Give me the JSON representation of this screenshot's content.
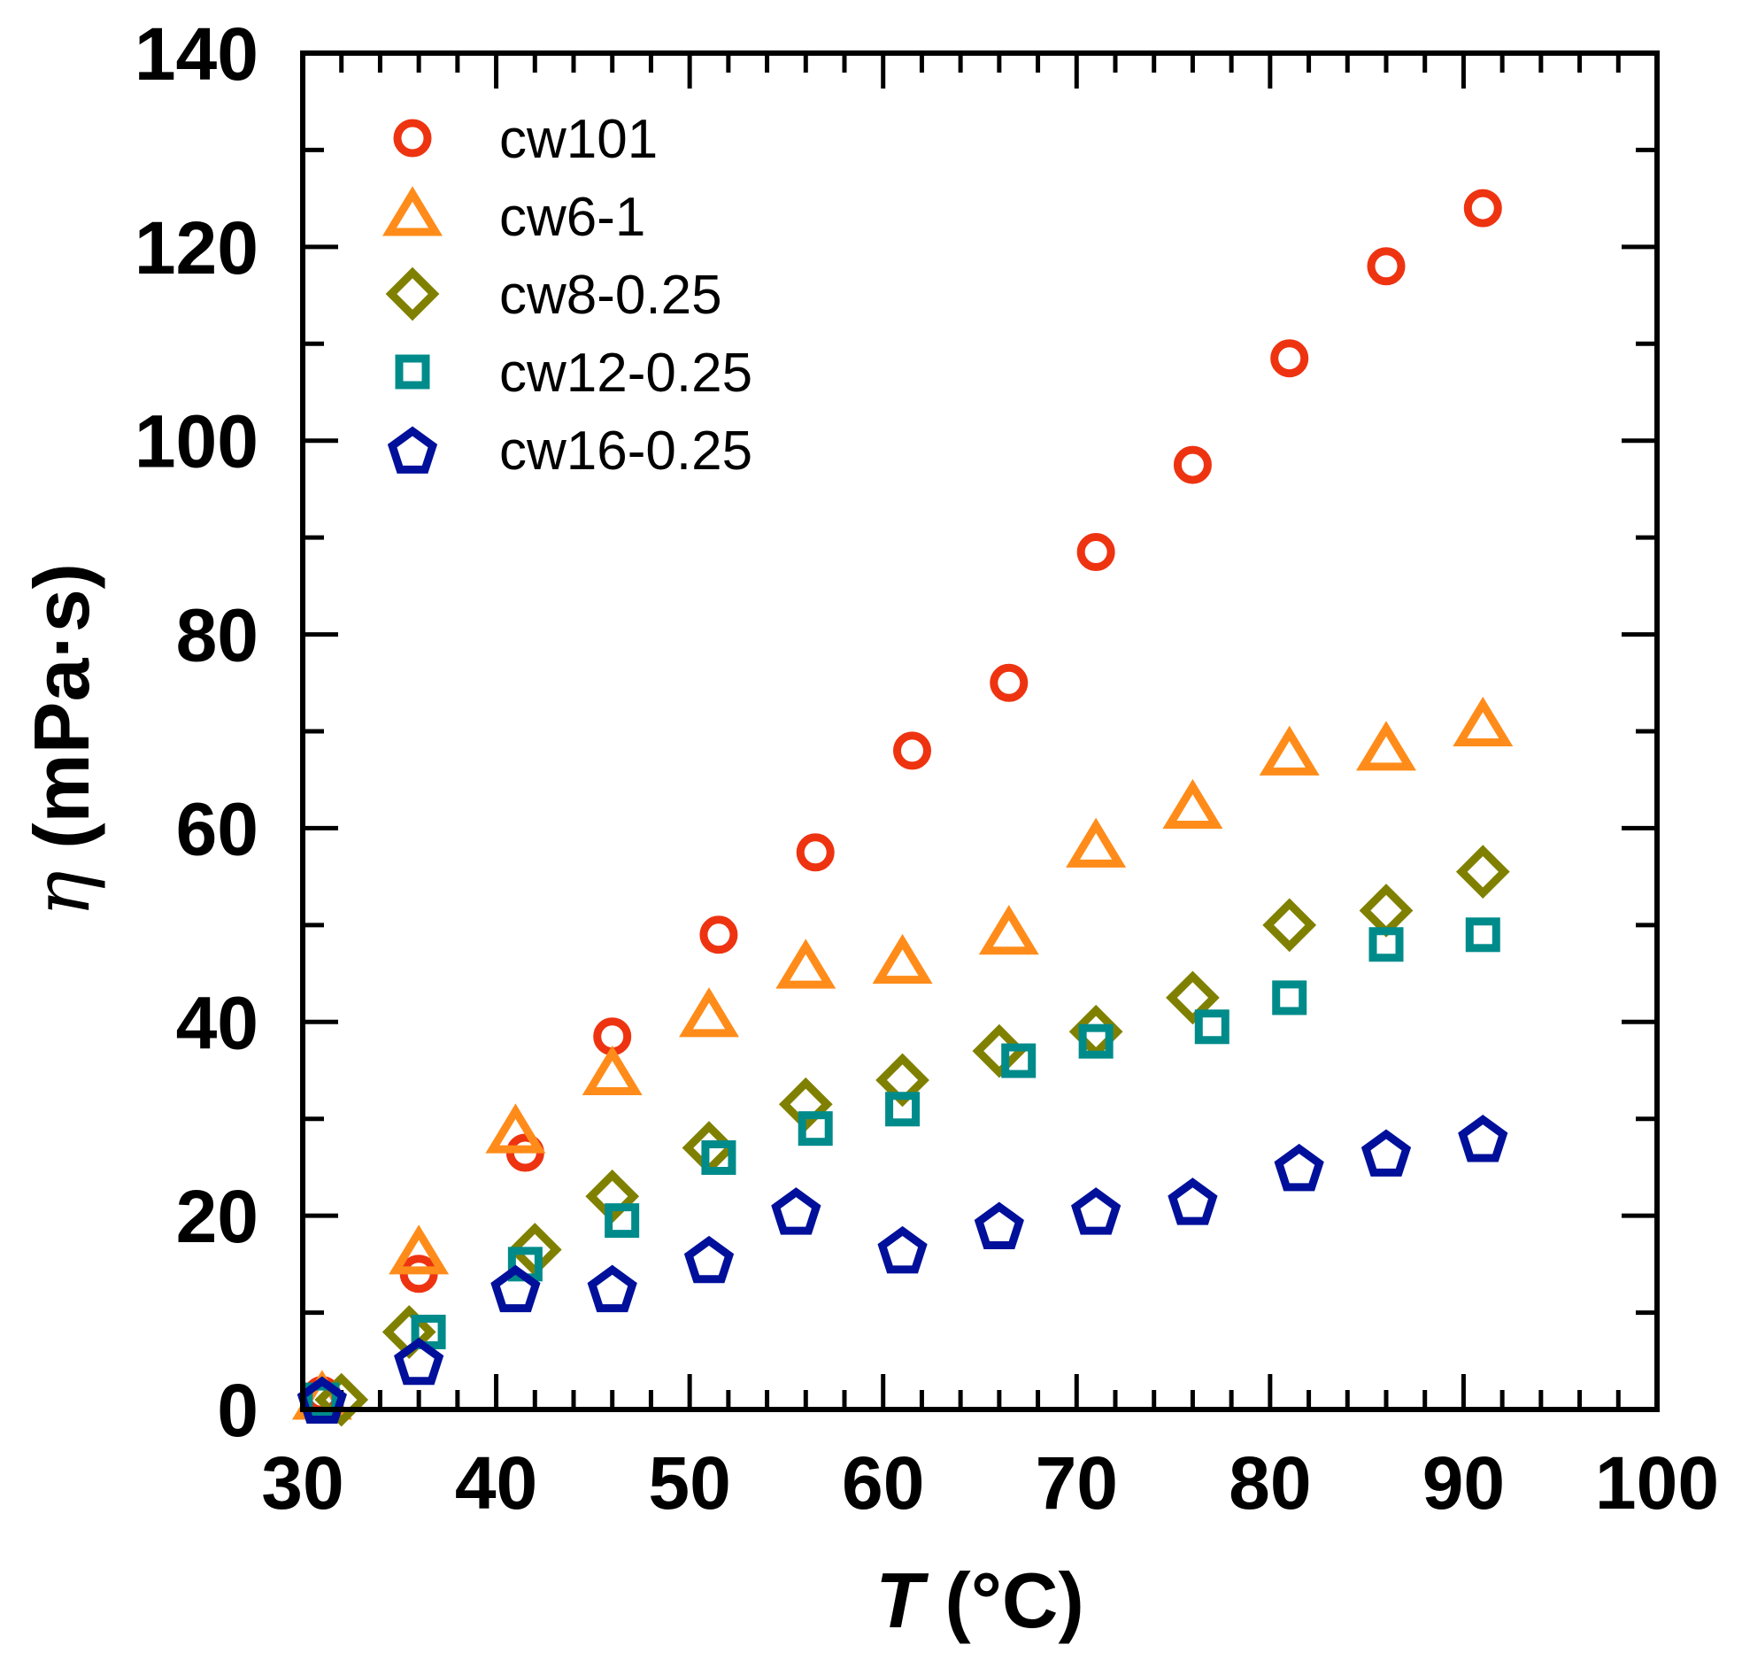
{
  "chart_data": {
    "type": "scatter",
    "xlabel": {
      "var": "T",
      "unit": " (°C)"
    },
    "ylabel": {
      "var": "η",
      "unit": " (mPa·s)"
    },
    "xlim": [
      30,
      100
    ],
    "ylim": [
      0,
      140
    ],
    "xticks": [
      30,
      40,
      50,
      60,
      70,
      80,
      90,
      100
    ],
    "yticks": [
      0,
      20,
      40,
      60,
      80,
      100,
      120,
      140
    ],
    "grid": false,
    "legend": "top-left",
    "series": [
      {
        "name": "cw101",
        "marker": "circle",
        "color": "#ee3311",
        "x": [
          31,
          36,
          41.5,
          46,
          51.5,
          56.5,
          61.5,
          66.5,
          71,
          76,
          81,
          86,
          91
        ],
        "y": [
          1.5,
          14,
          26.5,
          38.5,
          49,
          57.5,
          68,
          75,
          88.5,
          97.5,
          108.5,
          118,
          124
        ]
      },
      {
        "name": "cw6-1",
        "marker": "triangle",
        "color": "#ff8c1a",
        "x": [
          31,
          36,
          41,
          46,
          51,
          56,
          61,
          66.5,
          71,
          76,
          81,
          86,
          91
        ],
        "y": [
          1,
          16,
          28.5,
          34.5,
          40.5,
          45.5,
          46,
          49,
          58,
          62,
          67.5,
          68,
          70.5
        ]
      },
      {
        "name": "cw8-0.25",
        "marker": "diamond",
        "color": "#808000",
        "x": [
          32,
          35.5,
          42,
          46,
          51,
          56,
          61,
          66,
          71,
          76,
          81,
          86,
          91
        ],
        "y": [
          1,
          8,
          16.5,
          22,
          27,
          31.5,
          34,
          37,
          39,
          42.5,
          50,
          51.5,
          55.5
        ]
      },
      {
        "name": "cw12-0.25",
        "marker": "square",
        "color": "#008b8b",
        "x": [
          31,
          36.5,
          41.5,
          46.5,
          51.5,
          56.5,
          61,
          67,
          71,
          77,
          81,
          86,
          91
        ],
        "y": [
          1,
          8,
          15,
          19.5,
          26,
          29,
          31,
          36,
          38,
          39.5,
          42.5,
          48,
          49
        ]
      },
      {
        "name": "cw16-0.25",
        "marker": "pentagon",
        "color": "#00109a",
        "x": [
          31,
          36,
          41,
          46,
          51,
          55.5,
          61,
          66,
          71,
          76,
          81.5,
          86,
          91
        ],
        "y": [
          1,
          5,
          12.5,
          12.5,
          15.5,
          20.5,
          16.5,
          19,
          20.5,
          21.5,
          25,
          26.5,
          28
        ]
      }
    ]
  }
}
